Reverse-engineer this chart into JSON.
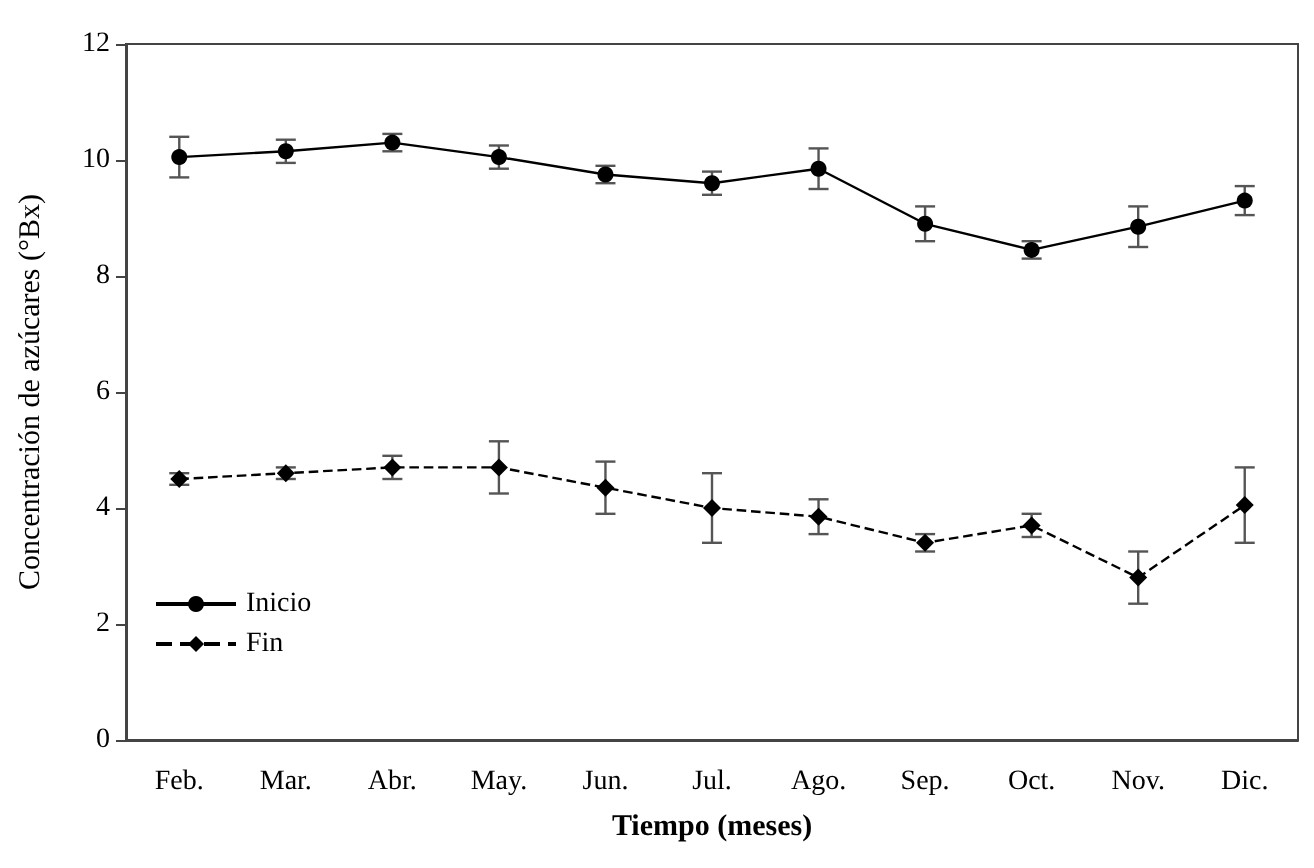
{
  "chart_data": {
    "type": "line",
    "xlabel": "Tiempo (meses)",
    "ylabel": "Concentración de azúcares (°Bx)",
    "categories": [
      "Feb.",
      "Mar.",
      "Abr.",
      "May.",
      "Jun.",
      "Jul.",
      "Ago.",
      "Sep.",
      "Oct.",
      "Nov.",
      "Dic."
    ],
    "series": [
      {
        "name": "Inicio",
        "color": "#000000",
        "marker": "circle",
        "line_style": "solid",
        "values": [
          10.05,
          10.15,
          10.3,
          10.05,
          9.75,
          9.6,
          9.85,
          8.9,
          8.45,
          8.85,
          9.3
        ],
        "errors": [
          0.35,
          0.2,
          0.15,
          0.2,
          0.15,
          0.2,
          0.35,
          0.3,
          0.15,
          0.35,
          0.25
        ]
      },
      {
        "name": "Fin",
        "color": "#000000",
        "marker": "diamond",
        "line_style": "dashed",
        "values": [
          4.5,
          4.6,
          4.7,
          4.7,
          4.35,
          4.0,
          3.85,
          3.4,
          3.7,
          2.8,
          4.05
        ],
        "errors": [
          0.1,
          0.1,
          0.2,
          0.45,
          0.45,
          0.6,
          0.3,
          0.15,
          0.2,
          0.45,
          0.65
        ]
      }
    ],
    "ylim": [
      0,
      12
    ],
    "yticks": [
      0,
      2,
      4,
      6,
      8,
      10,
      12
    ],
    "grid": false,
    "legend": "bottom left"
  }
}
